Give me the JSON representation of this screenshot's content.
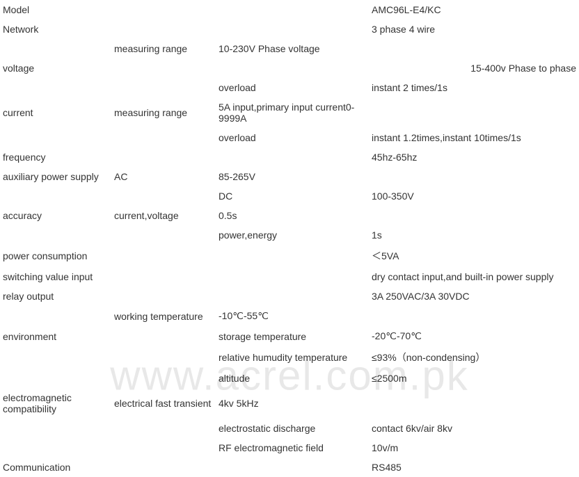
{
  "watermark": "www.acrel.com.pk",
  "rows": [
    {
      "c1": "Model",
      "c2": "",
      "c3": "",
      "c4": "AMC96L-E4/KC"
    },
    {
      "c1": "Network",
      "c2": "",
      "c3": "",
      "c4": "3 phase 4 wire"
    },
    {
      "c1": "",
      "c2": "measuring range",
      "c3": "10-230V Phase voltage",
      "c4": ""
    },
    {
      "c1": "voltage",
      "c2": "",
      "c3": "",
      "c4": "15-400v Phase to phase",
      "c4_align": "right"
    },
    {
      "c1": "",
      "c2": "",
      "c3": "overload",
      "c4": "instant 2 times/1s"
    },
    {
      "c1": "current",
      "c2": "measuring range",
      "c3": "5A input,primary input current0-9999A",
      "c4": ""
    },
    {
      "c1": "",
      "c2": "",
      "c3": "overload",
      "c4": "instant 1.2times,instant 10times/1s"
    },
    {
      "c1": "frequency",
      "c2": "",
      "c3": "",
      "c4": "45hz-65hz"
    },
    {
      "c1": "auxiliary power supply",
      "c2": "AC",
      "c3": "85-265V",
      "c4": ""
    },
    {
      "c1": "",
      "c2": "",
      "c3": "DC",
      "c4": "100-350V"
    },
    {
      "c1": "accuracy",
      "c2": "current,voltage",
      "c3": "0.5s",
      "c4": ""
    },
    {
      "c1": "",
      "c2": "",
      "c3": "power,energy",
      "c4": "1s"
    },
    {
      "c1": "power consumption",
      "c2": "",
      "c3": "",
      "c4": "＜5VA"
    },
    {
      "c1": "switching value input",
      "c2": "",
      "c3": "",
      "c4": "dry contact input,and built-in power supply"
    },
    {
      "c1": "relay output",
      "c2": "",
      "c3": "",
      "c4": "3A 250VAC/3A 30VDC"
    },
    {
      "c1": "",
      "c2": "working temperature",
      "c3": "-10℃-55℃",
      "c4": ""
    },
    {
      "c1": "environment",
      "c2": "",
      "c3": "storage temperature",
      "c4": "-20℃-70℃"
    },
    {
      "c1": "",
      "c2": "",
      "c3": "relative humudity temperature",
      "c4": "≤93%（non-condensing）"
    },
    {
      "c1": "",
      "c2": "",
      "c3": "altitude",
      "c4": "≤2500m"
    },
    {
      "c1": "electromagnetic compatibility",
      "c2": "electrical fast transient",
      "c3": "4kv 5kHz",
      "c4": ""
    },
    {
      "c1": "",
      "c2": "",
      "c3": "electrostatic discharge",
      "c4": "contact 6kv/air 8kv"
    },
    {
      "c1": "",
      "c2": "",
      "c3": "RF electromagnetic field",
      "c4": "10v/m"
    },
    {
      "c1": "Communication",
      "c2": "",
      "c3": "",
      "c4": "RS485"
    }
  ]
}
